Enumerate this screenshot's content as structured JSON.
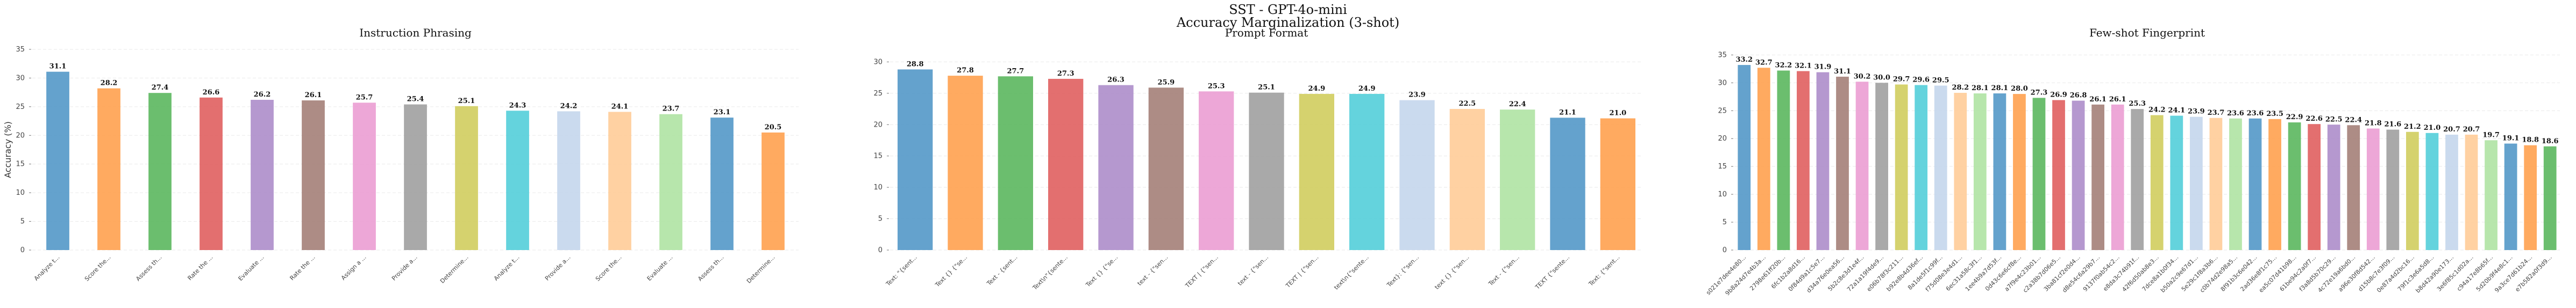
{
  "figure": {
    "title": "SST - GPT-4o-mini",
    "subtitle": "Accuracy Marginalization (3-shot)"
  },
  "palette": [
    "#4e95c6",
    "#ff9e4a",
    "#57b55a",
    "#df5b5b",
    "#ab8ac8",
    "#a27c74",
    "#ea9bd1",
    "#9d9d9d",
    "#cfcc5a",
    "#4fcdd8",
    "#c3d5ec",
    "#ffcb95",
    "#ade3a0"
  ],
  "chart_data": [
    {
      "type": "bar",
      "title": "Instruction Phrasing",
      "ylabel": "Accuracy (%)",
      "ylim": [
        0,
        35
      ],
      "yticks": [
        0,
        5,
        10,
        15,
        20,
        25,
        30,
        35
      ],
      "grid": true,
      "categories": [
        "Analyze t...",
        "Score the...",
        "Assess th...",
        "Rate the ...",
        "Evaluate ...",
        "Rate the ...",
        "Assign a ...",
        "Provide a...",
        "Determine...",
        "Analyze t...",
        "Provide a...",
        "Score the...",
        "Evaluate ...",
        "Assess th...",
        "Determine..."
      ],
      "values": [
        31.1,
        28.2,
        27.4,
        26.6,
        26.2,
        26.1,
        25.7,
        25.4,
        25.1,
        24.3,
        24.2,
        24.1,
        23.7,
        23.1,
        20.5
      ]
    },
    {
      "type": "bar",
      "title": "Prompt Format",
      "ylim": [
        0,
        32
      ],
      "yticks": [
        0,
        5,
        10,
        15,
        20,
        25,
        30
      ],
      "grid": true,
      "categories": [
        "Text: \"{sent...",
        "Text {} {\"se...",
        "Text - {sent...",
        "Text\\n\"{sente...",
        "Text {} {\"se...",
        "text - {\"sen...",
        "TEXT | {\"sen...",
        "text - {\"sen...",
        "TEXT | {\"sen...",
        "text\\n{\"sente...",
        "Text}: {\"sen...",
        "text {} {\"sen...",
        "Text - {\"sen...",
        "TEXT {\"sente...",
        "Text: {\"sent..."
      ],
      "values": [
        28.8,
        27.8,
        27.7,
        27.3,
        26.3,
        25.9,
        25.3,
        25.1,
        24.9,
        24.9,
        23.9,
        22.5,
        22.4,
        21.1,
        21.0
      ]
    },
    {
      "type": "bar",
      "title": "Few-shot Fingerprint",
      "ylim": [
        0,
        36
      ],
      "yticks": [
        0,
        5,
        10,
        15,
        20,
        25,
        30,
        35
      ],
      "grid": true,
      "categories": [
        "s021e7dee4e80...",
        "9b8a24d7e4b3a...",
        "2798e61ff20b...",
        "6fc1b2a8d16...",
        "0f84d9a1c5e7...",
        "d34a76e0ea56...",
        "5b2c8e3d1e4f...",
        "72a1a19f4de9...",
        "e06b78f3c211...",
        "b92e8b4d36ef...",
        "8a1de5f1c99f...",
        "f75d08e3e4d1...",
        "6ec31a58c3f1...",
        "1ee4b9a7d53f...",
        "0d43c6e6cf8e...",
        "a7f9e4c23b01...",
        "c2a38b7d06e5...",
        "3ba81cf2e0d4...",
        "d8e54c6a29b7...",
        "9137f0ab54c2...",
        "e8da3c74b91f...",
        "42f6d50ab8e3...",
        "7dce8a1b0f34...",
        "b50a2c9e67d1...",
        "5e29c1f8a3b6...",
        "c0b74d2e98a5...",
        "8f91b3c6e042...",
        "2ad36e8f1c75...",
        "ea5c07d41b98...",
        "61be94c2a0f7...",
        "f3a8d5b70c29...",
        "4c72e19a6bd0...",
        "a96e30f8d542...",
        "d15b8c7e3f09...",
        "0e87a4d2bc16...",
        "79f1c3e6a5d8...",
        "b8d42a90e173...",
        "3e6f85c1d02a...",
        "c94a17e8b65f...",
        "5d20b9f4e8c1...",
        "9a3ce7d61b24...",
        "e7b582a0f3d9..."
      ],
      "values": [
        33.2,
        32.7,
        32.2,
        32.1,
        31.9,
        31.1,
        30.2,
        30.0,
        29.7,
        29.6,
        29.5,
        28.2,
        28.1,
        28.1,
        28.0,
        27.3,
        26.9,
        26.8,
        26.1,
        26.1,
        25.3,
        24.2,
        24.1,
        23.9,
        23.7,
        23.6,
        23.6,
        23.5,
        22.9,
        22.6,
        22.5,
        22.4,
        21.8,
        21.6,
        21.2,
        21.0,
        20.7,
        20.7,
        19.7,
        19.1,
        18.8,
        18.6
      ]
    }
  ]
}
